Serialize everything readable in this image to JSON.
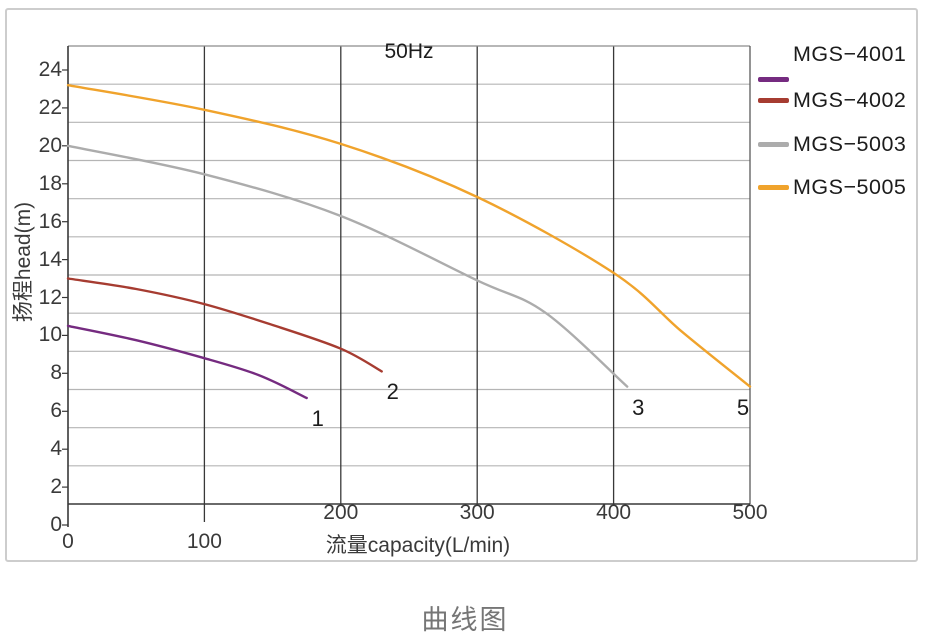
{
  "caption": "曲线图",
  "chart_data": {
    "type": "line",
    "title": "50Hz",
    "xlabel": "流量capacity(L/min)",
    "ylabel": "扬程head(m)",
    "xlim": [
      0,
      500
    ],
    "ylim": [
      0,
      24
    ],
    "x_ticks": [
      0,
      100,
      200,
      300,
      400,
      500
    ],
    "y_ticks": [
      0,
      2,
      4,
      6,
      8,
      10,
      12,
      14,
      16,
      18,
      20,
      22,
      24
    ],
    "x_dark_gridlines": [
      100,
      200,
      300,
      400
    ],
    "grid": "on",
    "legend_position": "right-outside",
    "series": [
      {
        "name": "MGS−4001",
        "color": "#752B80",
        "end_label": "1",
        "points": [
          [
            0,
            10.5
          ],
          [
            50,
            9.75
          ],
          [
            100,
            8.8
          ],
          [
            140,
            7.9
          ],
          [
            175,
            6.7
          ]
        ]
      },
      {
        "name": "MGS−4002",
        "color": "#A63C31",
        "end_label": "2",
        "points": [
          [
            0,
            13.0
          ],
          [
            50,
            12.45
          ],
          [
            100,
            11.65
          ],
          [
            150,
            10.55
          ],
          [
            200,
            9.3
          ],
          [
            230,
            8.1
          ]
        ]
      },
      {
        "name": "MGS−5003",
        "color": "#ACACAC",
        "end_label": "3",
        "points": [
          [
            0,
            20.0
          ],
          [
            100,
            18.5
          ],
          [
            200,
            16.3
          ],
          [
            300,
            12.9
          ],
          [
            350,
            11.2
          ],
          [
            410,
            7.3
          ]
        ]
      },
      {
        "name": "MGS−5005",
        "color": "#F0A32C",
        "end_label": "5",
        "points": [
          [
            0,
            23.2
          ],
          [
            100,
            21.9
          ],
          [
            200,
            20.1
          ],
          [
            300,
            17.3
          ],
          [
            400,
            13.3
          ],
          [
            450,
            10.2
          ],
          [
            500,
            7.3
          ]
        ]
      }
    ]
  }
}
